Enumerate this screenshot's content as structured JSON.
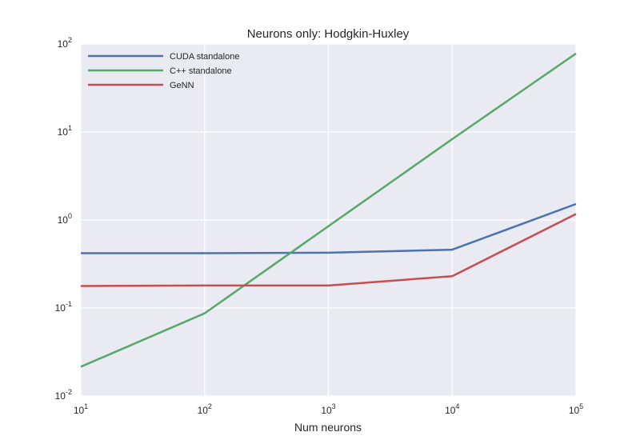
{
  "chart_data": {
    "type": "line",
    "title": "Neurons only: Hodgkin-Huxley",
    "xlabel": "Num neurons",
    "ylabel": "",
    "xscale": "log",
    "yscale": "log",
    "xlim": [
      10,
      100000
    ],
    "ylim": [
      0.01,
      100
    ],
    "x_tick_labels": [
      {
        "base": "10",
        "exp": "1"
      },
      {
        "base": "10",
        "exp": "2"
      },
      {
        "base": "10",
        "exp": "3"
      },
      {
        "base": "10",
        "exp": "4"
      },
      {
        "base": "10",
        "exp": "5"
      }
    ],
    "y_tick_labels": [
      {
        "base": "10",
        "exp": "-2"
      },
      {
        "base": "10",
        "exp": "-1"
      },
      {
        "base": "10",
        "exp": "0"
      },
      {
        "base": "10",
        "exp": "1"
      },
      {
        "base": "10",
        "exp": "2"
      }
    ],
    "x": [
      10,
      100,
      1000,
      10000,
      100000
    ],
    "series": [
      {
        "name": "CUDA standalone",
        "color": "#4c72b0",
        "values": [
          0.42,
          0.42,
          0.425,
          0.46,
          1.52
        ]
      },
      {
        "name": "C++ standalone",
        "color": "#55a868",
        "values": [
          0.0215,
          0.087,
          0.85,
          8.3,
          78
        ]
      },
      {
        "name": "GeNN",
        "color": "#c44e52",
        "values": [
          0.178,
          0.18,
          0.18,
          0.23,
          1.17
        ]
      }
    ],
    "grid": true,
    "legend_position": "top-left",
    "background_color": "#eaeaf2",
    "grid_color": "#ffffff"
  }
}
